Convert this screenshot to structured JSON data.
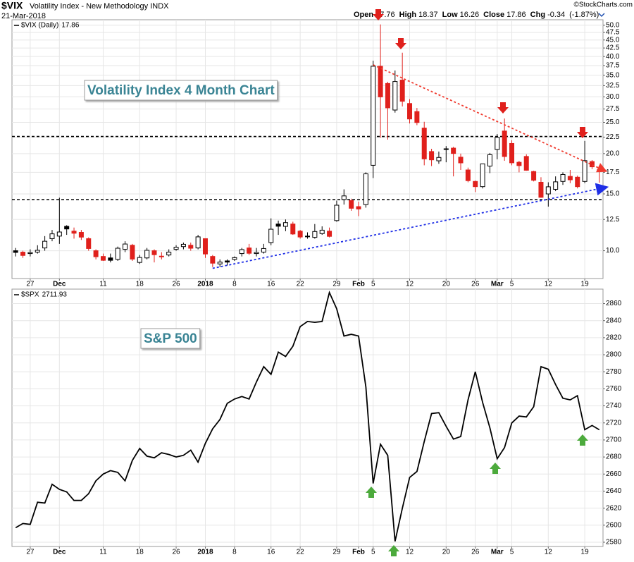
{
  "header": {
    "symbol": "$VIX",
    "name": "Volatility Index - New Methodology INDX",
    "date": "21-Mar-2018",
    "watermark": "©StockCharts.com",
    "open": "Open",
    "high": "High",
    "low": "Low",
    "close": "Close",
    "chg": "Chg",
    "change": -0.34,
    "change_pct": "(-1.87%)"
  },
  "chart_data": [
    {
      "type": "candlestick",
      "legend": "$VIX (Daily)",
      "annotation": "Volatility Index 4 Month Chart",
      "x": [
        "2017-11-22",
        "2017-11-24",
        "2017-11-27",
        "2017-11-28",
        "2017-11-29",
        "2017-11-30",
        "2017-12-01",
        "2017-12-04",
        "2017-12-05",
        "2017-12-06",
        "2017-12-07",
        "2017-12-08",
        "2017-12-11",
        "2017-12-12",
        "2017-12-13",
        "2017-12-14",
        "2017-12-15",
        "2017-12-18",
        "2017-12-19",
        "2017-12-20",
        "2017-12-21",
        "2017-12-22",
        "2017-12-26",
        "2017-12-27",
        "2017-12-28",
        "2017-12-29",
        "2018-01-02",
        "2018-01-03",
        "2018-01-04",
        "2018-01-05",
        "2018-01-08",
        "2018-01-09",
        "2018-01-10",
        "2018-01-11",
        "2018-01-12",
        "2018-01-16",
        "2018-01-17",
        "2018-01-18",
        "2018-01-19",
        "2018-01-22",
        "2018-01-23",
        "2018-01-24",
        "2018-01-25",
        "2018-01-26",
        "2018-01-29",
        "2018-01-30",
        "2018-01-31",
        "2018-02-01",
        "2018-02-02",
        "2018-02-05",
        "2018-02-06",
        "2018-02-07",
        "2018-02-08",
        "2018-02-09",
        "2018-02-12",
        "2018-02-13",
        "2018-02-14",
        "2018-02-15",
        "2018-02-16",
        "2018-02-20",
        "2018-02-21",
        "2018-02-22",
        "2018-02-23",
        "2018-02-26",
        "2018-02-27",
        "2018-02-28",
        "2018-03-01",
        "2018-03-02",
        "2018-03-05",
        "2018-03-06",
        "2018-03-07",
        "2018-03-08",
        "2018-03-09",
        "2018-03-12",
        "2018-03-13",
        "2018-03-14",
        "2018-03-15",
        "2018-03-16",
        "2018-03-19",
        "2018-03-20",
        "2018-03-21"
      ],
      "open": [
        10.0,
        9.9,
        9.8,
        9.9,
        10.2,
        10.9,
        11.1,
        11.9,
        11.5,
        11.4,
        10.9,
        10.0,
        9.6,
        9.5,
        9.4,
        10.1,
        10.4,
        9.2,
        9.5,
        10.0,
        9.6,
        9.7,
        10.1,
        10.3,
        10.4,
        10.2,
        10.9,
        9.6,
        9.1,
        9.3,
        9.4,
        9.8,
        10.2,
        9.8,
        9.9,
        10.6,
        12.1,
        11.9,
        12.1,
        11.5,
        11.1,
        11.0,
        11.3,
        11.5,
        12.4,
        14.4,
        14.3,
        13.7,
        13.9,
        18.4,
        37.3,
        33.0,
        27.3,
        33.8,
        28.6,
        27.0,
        24.0,
        20.3,
        19.0,
        20.7,
        20.8,
        19.5,
        17.8,
        16.4,
        15.8,
        18.3,
        20.6,
        23.5,
        21.5,
        18.8,
        19.6,
        17.6,
        16.3,
        15.0,
        15.5,
        16.4,
        17.0,
        16.9,
        16.4,
        18.9,
        17.76
      ],
      "high": [
        10.2,
        10.0,
        10.1,
        10.4,
        11.1,
        11.6,
        14.6,
        12.0,
        11.8,
        11.6,
        11.0,
        10.1,
        9.8,
        9.8,
        10.3,
        10.7,
        10.5,
        9.7,
        10.2,
        10.1,
        9.9,
        10.1,
        10.4,
        10.6,
        10.6,
        11.2,
        10.9,
        9.7,
        9.4,
        9.4,
        9.6,
        10.2,
        10.5,
        10.2,
        10.5,
        12.6,
        12.4,
        12.5,
        12.3,
        11.6,
        11.4,
        12.1,
        11.9,
        11.8,
        14.3,
        15.5,
        14.5,
        14.2,
        17.5,
        38.8,
        50.3,
        33.4,
        36.2,
        41.1,
        29.5,
        27.7,
        25.1,
        20.7,
        20.3,
        21.1,
        21.0,
        20.0,
        18.1,
        16.5,
        18.6,
        20.1,
        23.0,
        25.7,
        22.0,
        19.0,
        19.9,
        17.7,
        16.9,
        16.3,
        17.0,
        17.5,
        17.8,
        17.1,
        21.9,
        19.1,
        18.37
      ],
      "low": [
        9.6,
        9.5,
        9.6,
        9.8,
        10.0,
        10.7,
        10.5,
        11.2,
        10.9,
        10.8,
        10.0,
        9.4,
        9.3,
        9.2,
        9.3,
        9.9,
        9.3,
        9.1,
        9.4,
        9.2,
        9.4,
        9.6,
        10.0,
        10.1,
        10.0,
        10.1,
        9.5,
        8.9,
        8.9,
        9.0,
        9.3,
        9.6,
        9.7,
        9.6,
        9.8,
        10.4,
        11.2,
        11.5,
        11.2,
        10.9,
        10.9,
        10.9,
        11.2,
        11.0,
        12.3,
        13.9,
        13.3,
        12.8,
        13.6,
        16.8,
        22.4,
        22.1,
        26.8,
        28.0,
        24.8,
        24.5,
        18.4,
        18.3,
        18.6,
        18.8,
        17.0,
        17.8,
        16.3,
        15.2,
        15.6,
        17.4,
        19.2,
        19.0,
        18.4,
        17.5,
        17.7,
        16.4,
        14.6,
        13.7,
        15.3,
        16.0,
        16.2,
        15.6,
        16.2,
        17.9,
        16.26
      ],
      "close": [
        9.88,
        9.67,
        9.87,
        10.03,
        10.7,
        11.28,
        11.43,
        11.68,
        11.33,
        11.02,
        10.16,
        9.58,
        9.34,
        9.34,
        10.18,
        10.49,
        9.42,
        9.53,
        10.03,
        9.72,
        9.62,
        9.9,
        10.25,
        10.47,
        10.18,
        11.04,
        9.77,
        9.15,
        9.22,
        9.22,
        9.52,
        10.08,
        9.82,
        9.88,
        10.16,
        11.66,
        11.91,
        12.22,
        11.27,
        11.03,
        11.1,
        11.47,
        11.58,
        11.08,
        13.84,
        14.79,
        13.54,
        13.47,
        17.31,
        37.32,
        29.98,
        27.73,
        33.46,
        29.06,
        25.61,
        24.97,
        19.26,
        19.13,
        19.46,
        20.6,
        20.02,
        18.72,
        16.49,
        15.8,
        18.59,
        19.85,
        22.47,
        19.59,
        18.73,
        18.36,
        17.76,
        16.54,
        14.64,
        15.78,
        16.35,
        17.23,
        16.59,
        15.8,
        19.02,
        18.2,
        17.86
      ],
      "up_color": "#000000",
      "down_color": "#e0201c",
      "log_scale": true,
      "grid": true,
      "ylim": [
        8.2,
        52
      ],
      "yticks": [
        {
          "value": 10,
          "label": "10.0"
        },
        12.5,
        {
          "value": 15,
          "label": "15.0"
        },
        17.5,
        {
          "value": 20,
          "label": "20.0"
        },
        22.5,
        {
          "value": 25,
          "label": "25.0"
        },
        27.5,
        {
          "value": 30,
          "label": "30.0"
        },
        32.5,
        {
          "value": 35,
          "label": "35.0"
        },
        37.5,
        {
          "value": 40,
          "label": "40.0"
        },
        42.5,
        {
          "value": 45,
          "label": "45.0"
        },
        47.5,
        {
          "value": 50,
          "label": "50.0"
        }
      ],
      "xticks": [
        {
          "value": "2017-11-27",
          "label": "27"
        },
        {
          "value": "2017-12-01",
          "label": "Dec"
        },
        {
          "value": "2017-12-11",
          "label": "11"
        },
        {
          "value": "2017-12-18",
          "label": "18"
        },
        {
          "value": "2017-12-26",
          "label": "26"
        },
        {
          "value": "2018-01-02",
          "label": "2018"
        },
        {
          "value": "2018-01-08",
          "label": "8"
        },
        {
          "value": "2018-01-16",
          "label": "16"
        },
        {
          "value": "2018-01-22",
          "label": "22"
        },
        {
          "value": "2018-01-29",
          "label": "29"
        },
        {
          "value": "2018-02-01",
          "label": "Feb"
        },
        {
          "value": "2018-02-05",
          "label": "5"
        },
        {
          "value": "2018-02-12",
          "label": "12"
        },
        {
          "value": "2018-02-20",
          "label": "20"
        },
        {
          "value": "2018-02-26",
          "label": "26"
        },
        {
          "value": "2018-03-01",
          "label": "Mar"
        },
        {
          "value": "2018-03-05",
          "label": "5"
        },
        {
          "value": "2018-03-12",
          "label": "12"
        },
        {
          "value": "2018-03-19",
          "label": "19"
        }
      ],
      "hlines": [
        22.6,
        14.4
      ],
      "trendlines": [
        {
          "color": "#f03a2e",
          "points": [
            [
              "2018-02-05",
              37.7
            ],
            [
              "2018-03-21",
              17.7
            ]
          ]
        },
        {
          "color": "#1f2fe6",
          "points": [
            [
              "2018-01-03",
              8.82
            ],
            [
              "2018-03-21",
              15.7
            ]
          ]
        }
      ]
    },
    {
      "type": "line",
      "legend": "$SPX",
      "annotation": "S&P 500",
      "x": [
        "2017-11-22",
        "2017-11-24",
        "2017-11-27",
        "2017-11-28",
        "2017-11-29",
        "2017-11-30",
        "2017-12-01",
        "2017-12-04",
        "2017-12-05",
        "2017-12-06",
        "2017-12-07",
        "2017-12-08",
        "2017-12-11",
        "2017-12-12",
        "2017-12-13",
        "2017-12-14",
        "2017-12-15",
        "2017-12-18",
        "2017-12-19",
        "2017-12-20",
        "2017-12-21",
        "2017-12-22",
        "2017-12-26",
        "2017-12-27",
        "2017-12-28",
        "2017-12-29",
        "2018-01-02",
        "2018-01-03",
        "2018-01-04",
        "2018-01-05",
        "2018-01-08",
        "2018-01-09",
        "2018-01-10",
        "2018-01-11",
        "2018-01-12",
        "2018-01-16",
        "2018-01-17",
        "2018-01-18",
        "2018-01-19",
        "2018-01-22",
        "2018-01-23",
        "2018-01-24",
        "2018-01-25",
        "2018-01-26",
        "2018-01-29",
        "2018-01-30",
        "2018-01-31",
        "2018-02-01",
        "2018-02-02",
        "2018-02-05",
        "2018-02-06",
        "2018-02-07",
        "2018-02-08",
        "2018-02-09",
        "2018-02-12",
        "2018-02-13",
        "2018-02-14",
        "2018-02-15",
        "2018-02-16",
        "2018-02-20",
        "2018-02-21",
        "2018-02-22",
        "2018-02-23",
        "2018-02-26",
        "2018-02-27",
        "2018-02-28",
        "2018-03-01",
        "2018-03-02",
        "2018-03-05",
        "2018-03-06",
        "2018-03-07",
        "2018-03-08",
        "2018-03-09",
        "2018-03-12",
        "2018-03-13",
        "2018-03-14",
        "2018-03-15",
        "2018-03-16",
        "2018-03-19",
        "2018-03-20",
        "2018-03-21"
      ],
      "values": [
        2597,
        2602,
        2601,
        2627,
        2626,
        2648,
        2642,
        2639,
        2629,
        2629,
        2637,
        2652,
        2660,
        2664,
        2662,
        2652,
        2676,
        2690,
        2681,
        2679,
        2685,
        2683,
        2680,
        2682,
        2688,
        2674,
        2696,
        2713,
        2724,
        2743,
        2748,
        2751,
        2748,
        2768,
        2786,
        2777,
        2803,
        2798,
        2810,
        2833,
        2839,
        2838,
        2839,
        2873,
        2854,
        2822,
        2824,
        2822,
        2762,
        2649,
        2695,
        2682,
        2581,
        2620,
        2656,
        2663,
        2698,
        2731,
        2732,
        2716,
        2701,
        2704,
        2747,
        2780,
        2744,
        2714,
        2678,
        2691,
        2720,
        2728,
        2727,
        2739,
        2786,
        2783,
        2765,
        2749,
        2747,
        2752,
        2712,
        2717,
        2711.93
      ],
      "color": "#000000",
      "grid": true,
      "ylim": [
        2575,
        2877
      ],
      "yticks": [
        2580,
        2600,
        2620,
        2640,
        2660,
        2680,
        2700,
        2720,
        2740,
        2760,
        2780,
        2800,
        2820,
        2840,
        2860
      ],
      "xticks": [
        {
          "value": "2017-11-27",
          "label": "27"
        },
        {
          "value": "2017-12-01",
          "label": "Dec"
        },
        {
          "value": "2017-12-11",
          "label": "11"
        },
        {
          "value": "2017-12-18",
          "label": "18"
        },
        {
          "value": "2017-12-26",
          "label": "26"
        },
        {
          "value": "2018-01-02",
          "label": "2018"
        },
        {
          "value": "2018-01-08",
          "label": "8"
        },
        {
          "value": "2018-01-16",
          "label": "16"
        },
        {
          "value": "2018-01-22",
          "label": "22"
        },
        {
          "value": "2018-01-29",
          "label": "29"
        },
        {
          "value": "2018-02-01",
          "label": "Feb"
        },
        {
          "value": "2018-02-05",
          "label": "5"
        },
        {
          "value": "2018-02-12",
          "label": "12"
        },
        {
          "value": "2018-02-20",
          "label": "20"
        },
        {
          "value": "2018-02-26",
          "label": "26"
        },
        {
          "value": "2018-03-01",
          "label": "Mar"
        },
        {
          "value": "2018-03-05",
          "label": "5"
        },
        {
          "value": "2018-03-12",
          "label": "12"
        },
        {
          "value": "2018-03-19",
          "label": "19"
        }
      ]
    }
  ]
}
